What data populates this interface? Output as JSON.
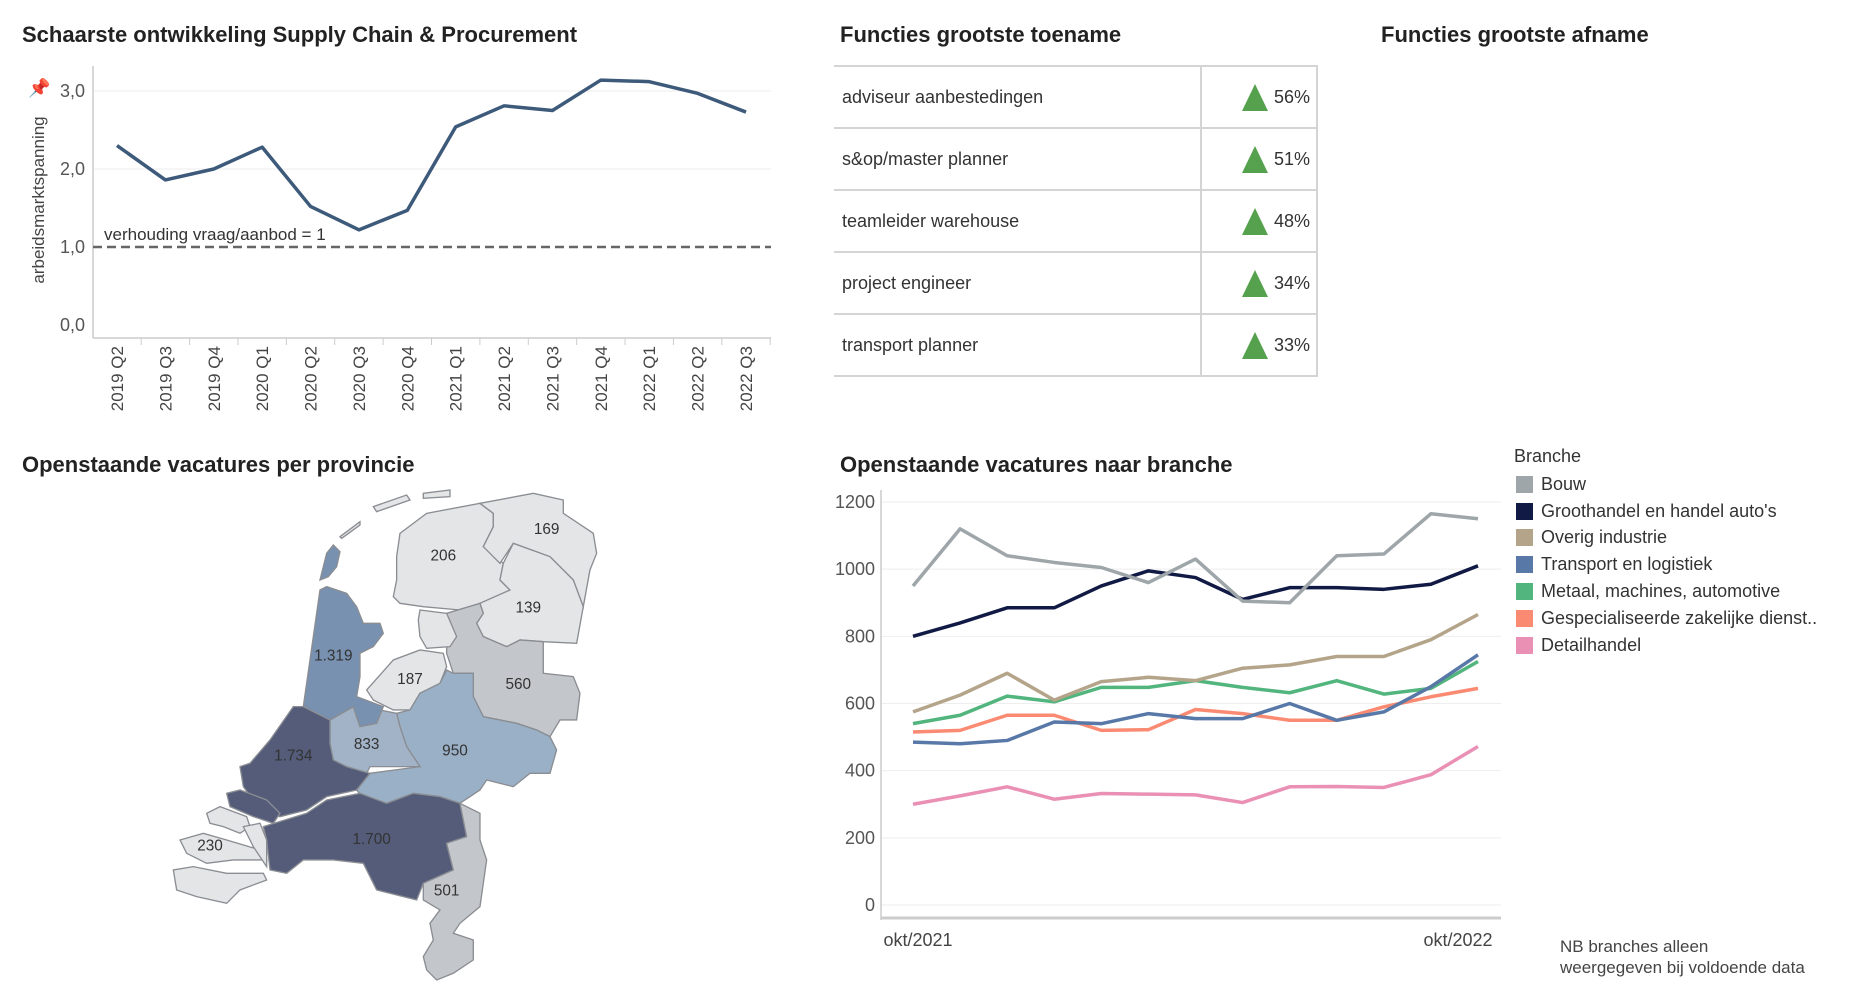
{
  "titles": {
    "scarcity": "Schaarste ontwikkeling Supply Chain & Procurement",
    "increase": "Functies grootste toename",
    "decrease": "Functies grootste afname",
    "map": "Openstaande vacatures per provincie",
    "branche": "Openstaande vacatures naar branche"
  },
  "increase_table": [
    {
      "name": "adviseur aanbestedingen",
      "value": "56%"
    },
    {
      "name": "s&op/master planner",
      "value": "51%"
    },
    {
      "name": "teamleider warehouse",
      "value": "48%"
    },
    {
      "name": "project engineer",
      "value": "34%"
    },
    {
      "name": "transport planner",
      "value": "33%"
    }
  ],
  "map": {
    "provinces": [
      {
        "name": "Friesland",
        "value": "206"
      },
      {
        "name": "Groningen",
        "value": "169"
      },
      {
        "name": "Drenthe",
        "value": "139"
      },
      {
        "name": "Noord-Holland",
        "value": "1.319"
      },
      {
        "name": "Flevoland",
        "value": "187"
      },
      {
        "name": "Overijssel",
        "value": "560"
      },
      {
        "name": "Utrecht",
        "value": "833"
      },
      {
        "name": "Gelderland",
        "value": "950"
      },
      {
        "name": "Zuid-Holland",
        "value": "1.734"
      },
      {
        "name": "Noord-Brabant",
        "value": "1.700"
      },
      {
        "name": "Zeeland",
        "value": "230"
      },
      {
        "name": "Limburg",
        "value": "501"
      }
    ]
  },
  "note": {
    "line1": "NB branches alleen",
    "line2": "weergegeven bij voldoende data"
  },
  "chart_data": [
    {
      "type": "line",
      "title": "Schaarste ontwikkeling Supply Chain & Procurement",
      "xlabel": "",
      "ylabel": "arbeidsmarktspanning",
      "categories": [
        "2019 Q2",
        "2019 Q3",
        "2019 Q4",
        "2020 Q1",
        "2020 Q2",
        "2020 Q3",
        "2020 Q4",
        "2021 Q1",
        "2021 Q2",
        "2021 Q3",
        "2021 Q4",
        "2022 Q1",
        "2022 Q2",
        "2022 Q3"
      ],
      "values": [
        2.3,
        1.86,
        2.0,
        2.28,
        1.52,
        1.22,
        1.47,
        2.54,
        2.81,
        2.75,
        3.14,
        3.12,
        2.97,
        2.73
      ],
      "ylim": [
        0,
        3.3
      ],
      "yticks": [
        "0,0",
        "1,0",
        "2,0",
        "3,0"
      ],
      "reference_line": {
        "value": 1.0,
        "label": "verhouding vraag/aanbod = 1"
      },
      "color": "#3d5a7a",
      "grid": true
    },
    {
      "type": "line",
      "title": "Openstaande vacatures naar branche",
      "xlabel": "",
      "ylabel": "",
      "x_tick_labels": [
        "okt/2021",
        "okt/2022"
      ],
      "yticks": [
        0,
        200,
        400,
        600,
        800,
        1000,
        1200
      ],
      "ylim": [
        0,
        1200
      ],
      "legend_title": "Branche",
      "legend_position": "right",
      "series": [
        {
          "name": "Bouw",
          "color": "#9fa6a9",
          "values": [
            950,
            1120,
            1040,
            1020,
            1005,
            960,
            1030,
            905,
            900,
            1040,
            1045,
            1165,
            1150
          ]
        },
        {
          "name": "Groothandel en handel auto's",
          "color": "#111a44",
          "values": [
            800,
            840,
            885,
            885,
            950,
            995,
            975,
            910,
            945,
            945,
            940,
            955,
            1010
          ]
        },
        {
          "name": "Overig industrie",
          "color": "#b4a48a",
          "values": [
            575,
            625,
            690,
            610,
            665,
            678,
            668,
            705,
            715,
            740,
            740,
            790,
            865
          ]
        },
        {
          "name": "Transport en logistiek",
          "color": "#5878a8",
          "values": [
            485,
            480,
            490,
            545,
            540,
            570,
            555,
            555,
            600,
            550,
            575,
            650,
            745
          ]
        },
        {
          "name": "Metaal, machines, automotive",
          "color": "#52b57e",
          "values": [
            540,
            565,
            622,
            605,
            648,
            648,
            668,
            648,
            632,
            668,
            628,
            645,
            725
          ]
        },
        {
          "name": "Gespecialiseerde zakelijke dienst..",
          "color": "#fb8a72",
          "values": [
            515,
            520,
            565,
            565,
            520,
            522,
            582,
            570,
            550,
            550,
            590,
            620,
            645
          ]
        },
        {
          "name": "Detailhandel",
          "color": "#e990b4",
          "values": [
            300,
            325,
            352,
            315,
            332,
            330,
            328,
            305,
            352,
            353,
            350,
            388,
            472
          ]
        }
      ]
    }
  ]
}
